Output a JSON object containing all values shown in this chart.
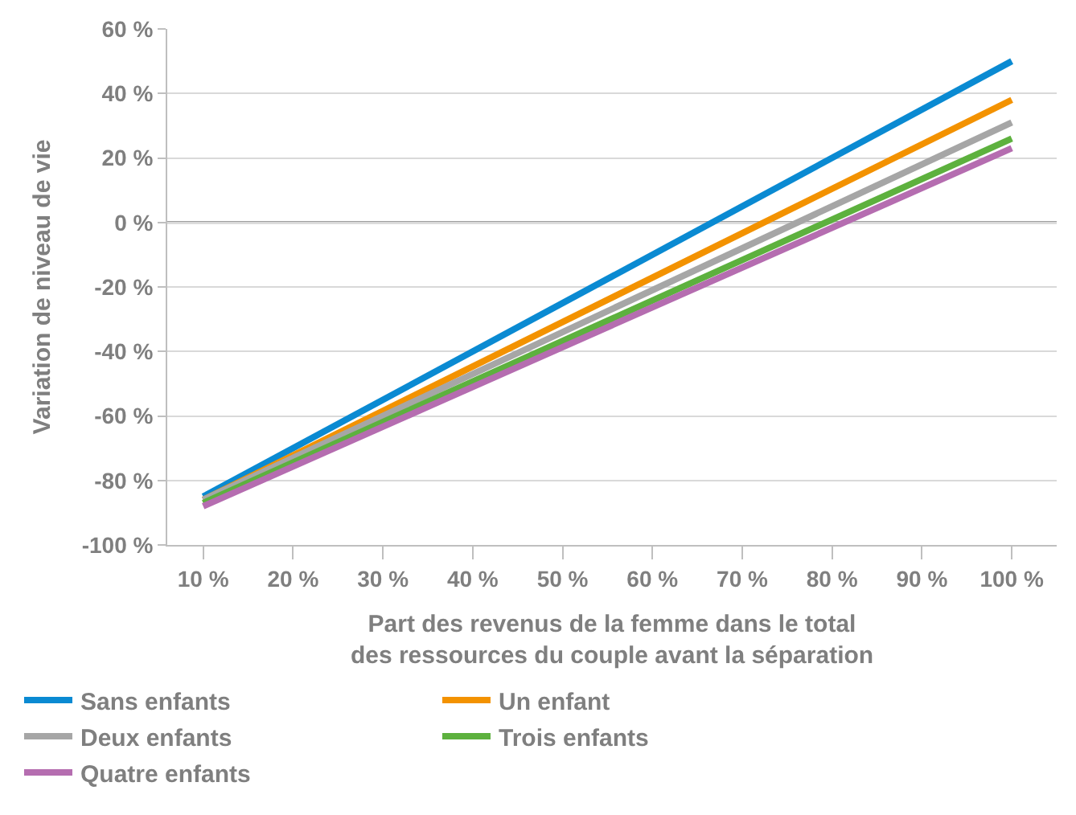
{
  "chart_data": {
    "type": "line",
    "xlabel": "Part des revenus de la femme dans le total\ndes ressources du couple avant la séparation",
    "ylabel": "Variation de niveau de vie",
    "x": [
      10,
      100
    ],
    "series": [
      {
        "name": "Sans enfants",
        "color": "#0a8ad2",
        "values": [
          -85,
          50
        ]
      },
      {
        "name": "Un enfant",
        "color": "#f39200",
        "values": [
          -86,
          38
        ]
      },
      {
        "name": "Deux enfants",
        "color": "#a6a6a6",
        "values": [
          -86,
          31
        ]
      },
      {
        "name": "Trois enfants",
        "color": "#5db13e",
        "values": [
          -87,
          26
        ]
      },
      {
        "name": "Quatre enfants",
        "color": "#b56db0",
        "values": [
          -88,
          23
        ]
      }
    ],
    "xlim": [
      6,
      105
    ],
    "xticks": [
      {
        "value": 10,
        "label": "10 %"
      },
      {
        "value": 20,
        "label": "20 %"
      },
      {
        "value": 30,
        "label": "30 %"
      },
      {
        "value": 40,
        "label": "40 %"
      },
      {
        "value": 50,
        "label": "50 %"
      },
      {
        "value": 60,
        "label": "60 %"
      },
      {
        "value": 70,
        "label": "70 %"
      },
      {
        "value": 80,
        "label": "80 %"
      },
      {
        "value": 90,
        "label": "90 %"
      },
      {
        "value": 100,
        "label": "100 %"
      }
    ],
    "ylim": [
      -100,
      60
    ],
    "yticks": [
      {
        "value": -100,
        "label": "-100 %"
      },
      {
        "value": -80,
        "label": "-80 %"
      },
      {
        "value": -60,
        "label": "-60 %"
      },
      {
        "value": -40,
        "label": "-40 %"
      },
      {
        "value": -20,
        "label": "-20 %"
      },
      {
        "value": 0,
        "label": "0 %"
      },
      {
        "value": 20,
        "label": "20 %"
      },
      {
        "value": 40,
        "label": "40 %"
      },
      {
        "value": 60,
        "label": "60 %"
      }
    ],
    "ref_lines": [
      {
        "axis": "y",
        "value": 0,
        "color": "#7f7f7f"
      }
    ],
    "grid": "y",
    "legend": "bottom",
    "marker": "none",
    "line_style": "solid"
  }
}
